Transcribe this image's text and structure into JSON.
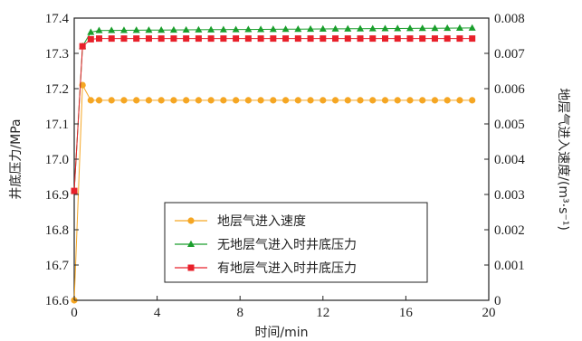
{
  "chart_data": {
    "type": "line",
    "xlabel": "时间/min",
    "ylabel_left": "井底压力/MPa",
    "ylabel_right": "地层气进入速度/(m³·s⁻¹)",
    "xlim": [
      0,
      20
    ],
    "ylim_left": [
      16.6,
      17.4
    ],
    "ylim_right": [
      0,
      0.008
    ],
    "x_ticks": [
      "0",
      "4",
      "8",
      "12",
      "16",
      "20"
    ],
    "y_left_ticks": [
      "16.6",
      "16.7",
      "16.8",
      "16.9",
      "17.0",
      "17.1",
      "17.2",
      "17.3",
      "17.4"
    ],
    "y_right_ticks": [
      "0",
      "0.001",
      "0.002",
      "0.003",
      "0.004",
      "0.005",
      "0.006",
      "0.007",
      "0.008"
    ],
    "legend_position": "lower-center",
    "grid": false,
    "series": [
      {
        "name": "地层气进入速度",
        "axis": "right",
        "color": "#f5a623",
        "marker": "circle",
        "points": [
          [
            0,
            0
          ],
          [
            0.4,
            0.0061
          ],
          [
            0.8,
            0.00567
          ],
          [
            1.2,
            0.00567
          ],
          [
            19.2,
            0.00567
          ]
        ]
      },
      {
        "name": "无地层气进入时井底压力",
        "axis": "left",
        "color": "#1a9e2c",
        "marker": "triangle",
        "points": [
          [
            0,
            16.91
          ],
          [
            0.4,
            17.32
          ],
          [
            0.8,
            17.36
          ],
          [
            1.2,
            17.365
          ],
          [
            19.2,
            17.372
          ]
        ]
      },
      {
        "name": "有地层气进入时井底压力",
        "axis": "left",
        "color": "#e8202a",
        "marker": "square",
        "points": [
          [
            0,
            16.91
          ],
          [
            0.4,
            17.32
          ],
          [
            0.8,
            17.34
          ],
          [
            1.2,
            17.342
          ],
          [
            19.2,
            17.342
          ]
        ]
      }
    ]
  }
}
